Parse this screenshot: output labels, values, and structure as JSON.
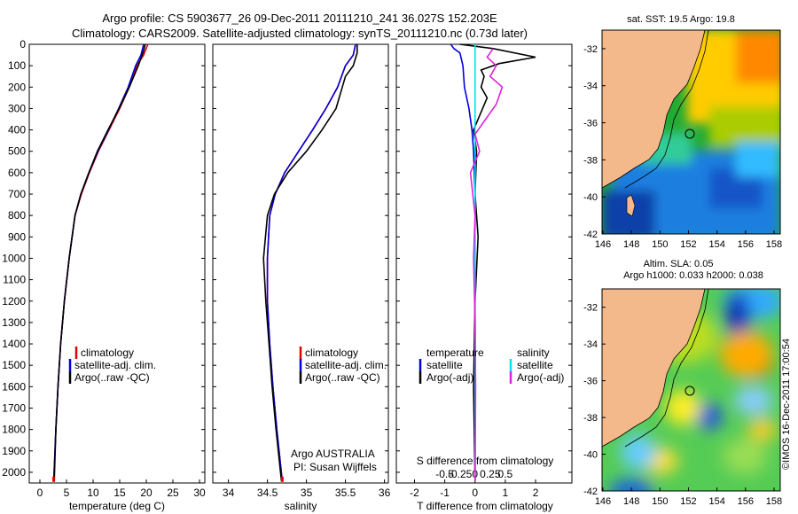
{
  "header": {
    "line1": "Argo profile: CS 5903677_26 09-Dec-2011 20111210_241 36.027S 152.203E",
    "line2": "Climatology: CARS2009. Satellite-adjusted climatology: synTS_20111210.nc (0.73d later)"
  },
  "colors": {
    "climatology": "#dd0000",
    "satellite": "#0000dd",
    "argo": "#000000",
    "sal_satellite": "#00e5ee",
    "sal_argo": "#dd22dd",
    "land": "#f4b98a"
  },
  "depth_axis": {
    "ylim": [
      0,
      2050
    ],
    "ticks": [
      "0",
      "100",
      "200",
      "300",
      "400",
      "500",
      "600",
      "700",
      "800",
      "900",
      "1000",
      "1100",
      "1200",
      "1300",
      "1400",
      "1500",
      "1600",
      "1700",
      "1800",
      "1900",
      "2000"
    ]
  },
  "panels": {
    "temperature": {
      "xlabel": "temperature (deg C)",
      "xticks": [
        "0",
        "5",
        "10",
        "15",
        "20",
        "25",
        "30"
      ],
      "legend": [
        "climatology",
        "satellite-adj. clim.",
        "Argo(..raw -QC)"
      ]
    },
    "salinity": {
      "xlabel": "salinity",
      "xticks": [
        "34",
        "34.5",
        "35",
        "35.5",
        "36"
      ],
      "legend": [
        "climatology",
        "satellite-adj. clim.",
        "Argo(..raw -QC)"
      ],
      "note1": "Argo AUSTRALIA",
      "note2": "PI: Susan Wijffels"
    },
    "difference": {
      "xlabel": "T difference from climatology",
      "top_label": "S difference from climatology",
      "xticks": [
        "-2",
        "-1",
        "0",
        "1",
        "2"
      ],
      "top_ticks": [
        "-0.5",
        "-0.25",
        "0",
        "0.25",
        "0.5"
      ],
      "legend_t_title": "temperature",
      "legend_s_title": "salinity",
      "legend_t": [
        "satellite",
        "Argo(-adj)"
      ],
      "legend_s": [
        "satellite",
        "Argo(-adj)"
      ]
    }
  },
  "maps": {
    "sst_title": "sat. SST: 19.5 Argo: 19.8",
    "sla_title1": "Altim. SLA: 0.05",
    "sla_title2": "Argo h1000: 0.033 h2000: 0.038",
    "lon_ticks": [
      "146",
      "148",
      "150",
      "152",
      "154",
      "156",
      "158"
    ],
    "lat_ticks": [
      "-32",
      "-34",
      "-36",
      "-38",
      "-40",
      "-42"
    ],
    "footer": "©IMOS 16-Dec-2011 17:00:54"
  },
  "chart_data": [
    {
      "type": "line",
      "xlabel": "temperature (deg C)",
      "ylabel": "",
      "xlim": [
        -2,
        31
      ],
      "ylim": [
        2050,
        0
      ],
      "series": [
        {
          "name": "climatology",
          "x": [
            20.3,
            19.5,
            18.2,
            16.8,
            15.0,
            13.0,
            11.0,
            9.3,
            7.8,
            6.6,
            5.5,
            4.6,
            3.9,
            3.4,
            3.0,
            2.6
          ],
          "y": [
            0,
            50,
            100,
            200,
            300,
            400,
            500,
            600,
            700,
            800,
            1000,
            1200,
            1400,
            1600,
            1800,
            2040
          ]
        },
        {
          "name": "satellite-adj. clim.",
          "x": [
            19.5,
            19.0,
            18.0,
            16.6,
            14.8,
            12.9,
            10.9,
            9.2,
            7.7,
            6.6,
            5.5,
            4.6,
            3.9,
            3.4,
            3.0,
            2.6
          ],
          "y": [
            0,
            50,
            100,
            200,
            300,
            400,
            500,
            600,
            700,
            800,
            1000,
            1200,
            1400,
            1600,
            1800,
            2040
          ]
        },
        {
          "name": "Argo(..raw -QC)",
          "x": [
            19.8,
            19.5,
            18.5,
            16.8,
            14.9,
            12.8,
            10.8,
            9.2,
            7.7,
            6.6,
            5.5,
            4.6,
            3.9,
            3.4,
            3.0,
            2.7
          ],
          "y": [
            0,
            30,
            100,
            200,
            300,
            400,
            500,
            600,
            700,
            800,
            1000,
            1200,
            1400,
            1600,
            1800,
            2040
          ]
        }
      ]
    },
    {
      "type": "line",
      "xlabel": "salinity",
      "ylabel": "",
      "xlim": [
        33.8,
        36.05
      ],
      "ylim": [
        2050,
        0
      ],
      "series": [
        {
          "name": "climatology",
          "x": [
            35.63,
            35.6,
            35.5,
            35.4,
            35.25,
            35.08,
            34.9,
            34.72,
            34.6,
            34.53,
            34.5,
            34.5,
            34.53,
            34.57,
            34.62,
            34.69
          ],
          "y": [
            0,
            50,
            100,
            200,
            300,
            400,
            500,
            600,
            700,
            800,
            1000,
            1200,
            1400,
            1600,
            1800,
            2040
          ]
        },
        {
          "name": "satellite-adj. clim.",
          "x": [
            35.63,
            35.6,
            35.5,
            35.4,
            35.25,
            35.08,
            34.9,
            34.72,
            34.6,
            34.53,
            34.5,
            34.5,
            34.53,
            34.57,
            34.62,
            34.69
          ],
          "y": [
            0,
            50,
            100,
            200,
            300,
            400,
            500,
            600,
            700,
            800,
            1000,
            1200,
            1400,
            1600,
            1800,
            2040
          ]
        },
        {
          "name": "Argo(..raw -QC)",
          "x": [
            35.65,
            35.65,
            35.6,
            35.5,
            35.38,
            35.2,
            35.0,
            34.76,
            34.59,
            34.5,
            34.45,
            34.48,
            34.52,
            34.56,
            34.61,
            34.68
          ],
          "y": [
            0,
            40,
            100,
            150,
            300,
            400,
            500,
            600,
            700,
            800,
            1000,
            1200,
            1400,
            1600,
            1800,
            2040
          ]
        }
      ]
    },
    {
      "type": "line",
      "xlabel": "T difference from climatology",
      "ylabel": "",
      "xlim": [
        -2.6,
        3.2
      ],
      "ylim": [
        2050,
        0
      ],
      "series": [
        {
          "name": "temperature satellite",
          "x": [
            -0.8,
            -0.7,
            -0.5,
            -0.4,
            -0.35,
            -0.2,
            -0.1,
            -0.05,
            0,
            0
          ],
          "y": [
            0,
            20,
            40,
            100,
            200,
            300,
            400,
            500,
            700,
            2040
          ]
        },
        {
          "name": "temperature Argo(-adj)",
          "x": [
            -0.5,
            0.6,
            2.0,
            0.8,
            0.2,
            0.3,
            0.2,
            0.4,
            0.25,
            -0.05,
            0.05,
            0.0,
            0.1,
            0.0,
            -0.05,
            0.0
          ],
          "y": [
            0,
            20,
            60,
            90,
            120,
            150,
            200,
            250,
            300,
            400,
            500,
            700,
            900,
            1200,
            1600,
            2040
          ]
        },
        {
          "name": "salinity satellite",
          "x": [
            0,
            0
          ],
          "y": [
            0,
            2040
          ]
        },
        {
          "name": "salinity Argo(-adj)",
          "x": [
            0.6,
            0.4,
            0.7,
            0.5,
            0.9,
            0.7,
            0.0,
            0.15,
            -0.15,
            0.0,
            -0.05,
            0.0,
            0.02,
            0.0
          ],
          "y": [
            20,
            60,
            100,
            150,
            200,
            280,
            420,
            500,
            600,
            800,
            1000,
            1300,
            1600,
            2040
          ]
        }
      ]
    }
  ]
}
